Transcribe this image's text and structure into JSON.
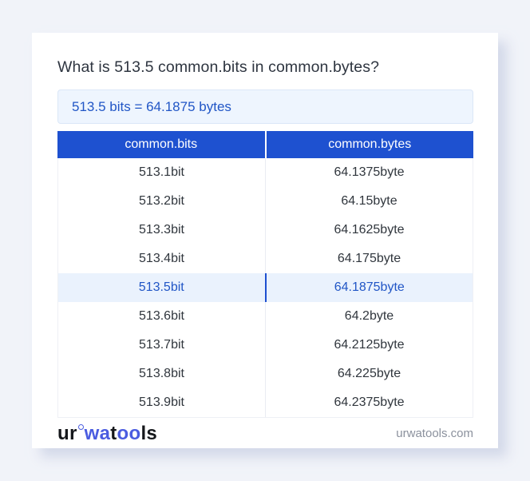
{
  "page": {
    "title": "What is 513.5 common.bits in common.bytes?",
    "result_text": "513.5 bits = 64.1875 bytes"
  },
  "table": {
    "columns": [
      "common.bits",
      "common.bytes"
    ],
    "rows": [
      {
        "bits": "513.1bit",
        "bytes": "64.1375byte",
        "highlight": false
      },
      {
        "bits": "513.2bit",
        "bytes": "64.15byte",
        "highlight": false
      },
      {
        "bits": "513.3bit",
        "bytes": "64.1625byte",
        "highlight": false
      },
      {
        "bits": "513.4bit",
        "bytes": "64.175byte",
        "highlight": false
      },
      {
        "bits": "513.5bit",
        "bytes": "64.1875byte",
        "highlight": true
      },
      {
        "bits": "513.6bit",
        "bytes": "64.2byte",
        "highlight": false
      },
      {
        "bits": "513.7bit",
        "bytes": "64.2125byte",
        "highlight": false
      },
      {
        "bits": "513.8bit",
        "bytes": "64.225byte",
        "highlight": false
      },
      {
        "bits": "513.9bit",
        "bytes": "64.2375byte",
        "highlight": false
      }
    ]
  },
  "footer": {
    "logo_parts": {
      "p1": "ur",
      "p2": "wa",
      "p3": "t",
      "p4": "oo",
      "p5": "ls"
    },
    "site": "urwatools.com"
  },
  "colors": {
    "page_background": "#f1f3f9",
    "card_background": "#ffffff",
    "header_blue": "#1e51d0",
    "result_box_background": "#eef5fe",
    "result_text_blue": "#2156c6",
    "highlight_row_background": "#eaf2fd",
    "cell_text": "#30363d",
    "footer_link_gray": "#8b919d",
    "logo_blue": "#4a5ce0"
  }
}
